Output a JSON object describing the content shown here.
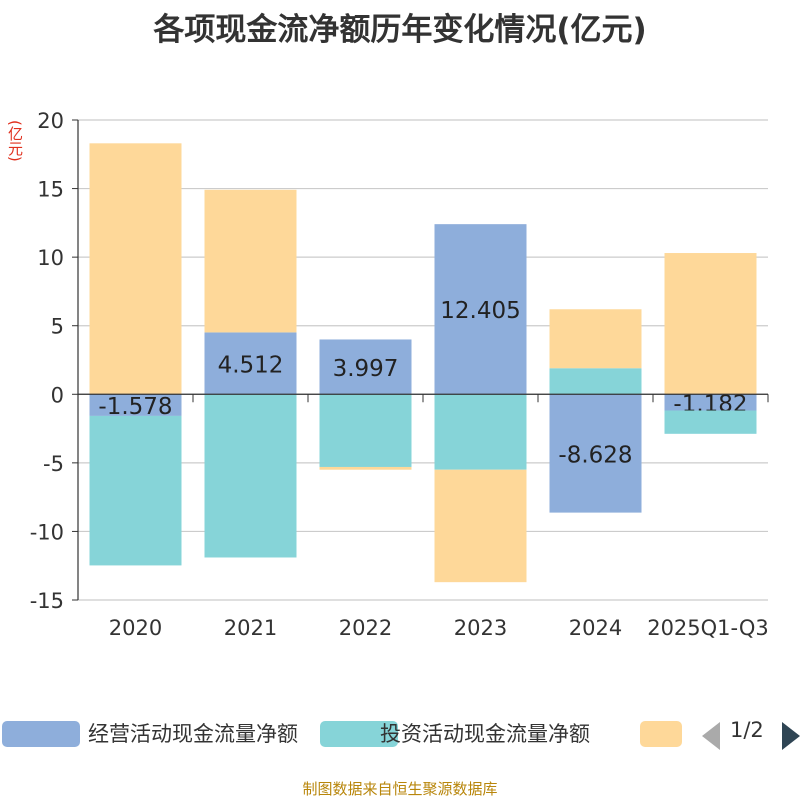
{
  "title": "各项现金流净额历年变化情况(亿元)",
  "unit_label": "(亿元)",
  "source": "制图数据来自恒生聚源数据库",
  "legend": {
    "items": [
      {
        "label": "经营活动现金流量净额",
        "color": "#8eaedb"
      },
      {
        "label": "投资活动现金流量净额",
        "color": "#86d4d8"
      },
      {
        "label": "",
        "color": "#fed899"
      }
    ],
    "page": "1/2"
  },
  "chart_data": {
    "type": "bar",
    "stacked": true,
    "title": "各项现金流净额历年变化情况(亿元)",
    "ylabel": "(亿元)",
    "ylim": [
      -15,
      20
    ],
    "yticks": [
      -15,
      -10,
      -5,
      0,
      5,
      10,
      15,
      20
    ],
    "categories": [
      "2020",
      "2021",
      "2022",
      "2023",
      "2024",
      "2025Q1-Q3"
    ],
    "series": [
      {
        "name": "经营活动现金流量净额",
        "color": "#8eaedb",
        "values": [
          -1.578,
          4.512,
          3.997,
          12.405,
          -8.628,
          -1.182
        ],
        "labels": [
          "-1.578",
          "4.512",
          "3.997",
          "12.405",
          "-8.628",
          "-1.182"
        ]
      },
      {
        "name": "投资活动现金流量净额",
        "color": "#86d4d8",
        "values": [
          -10.9,
          -11.9,
          -5.3,
          -5.5,
          1.9,
          -1.7
        ]
      },
      {
        "name": "",
        "color": "#fed899",
        "values": [
          18.3,
          10.4,
          -0.2,
          -8.2,
          4.3,
          10.3
        ]
      }
    ]
  }
}
